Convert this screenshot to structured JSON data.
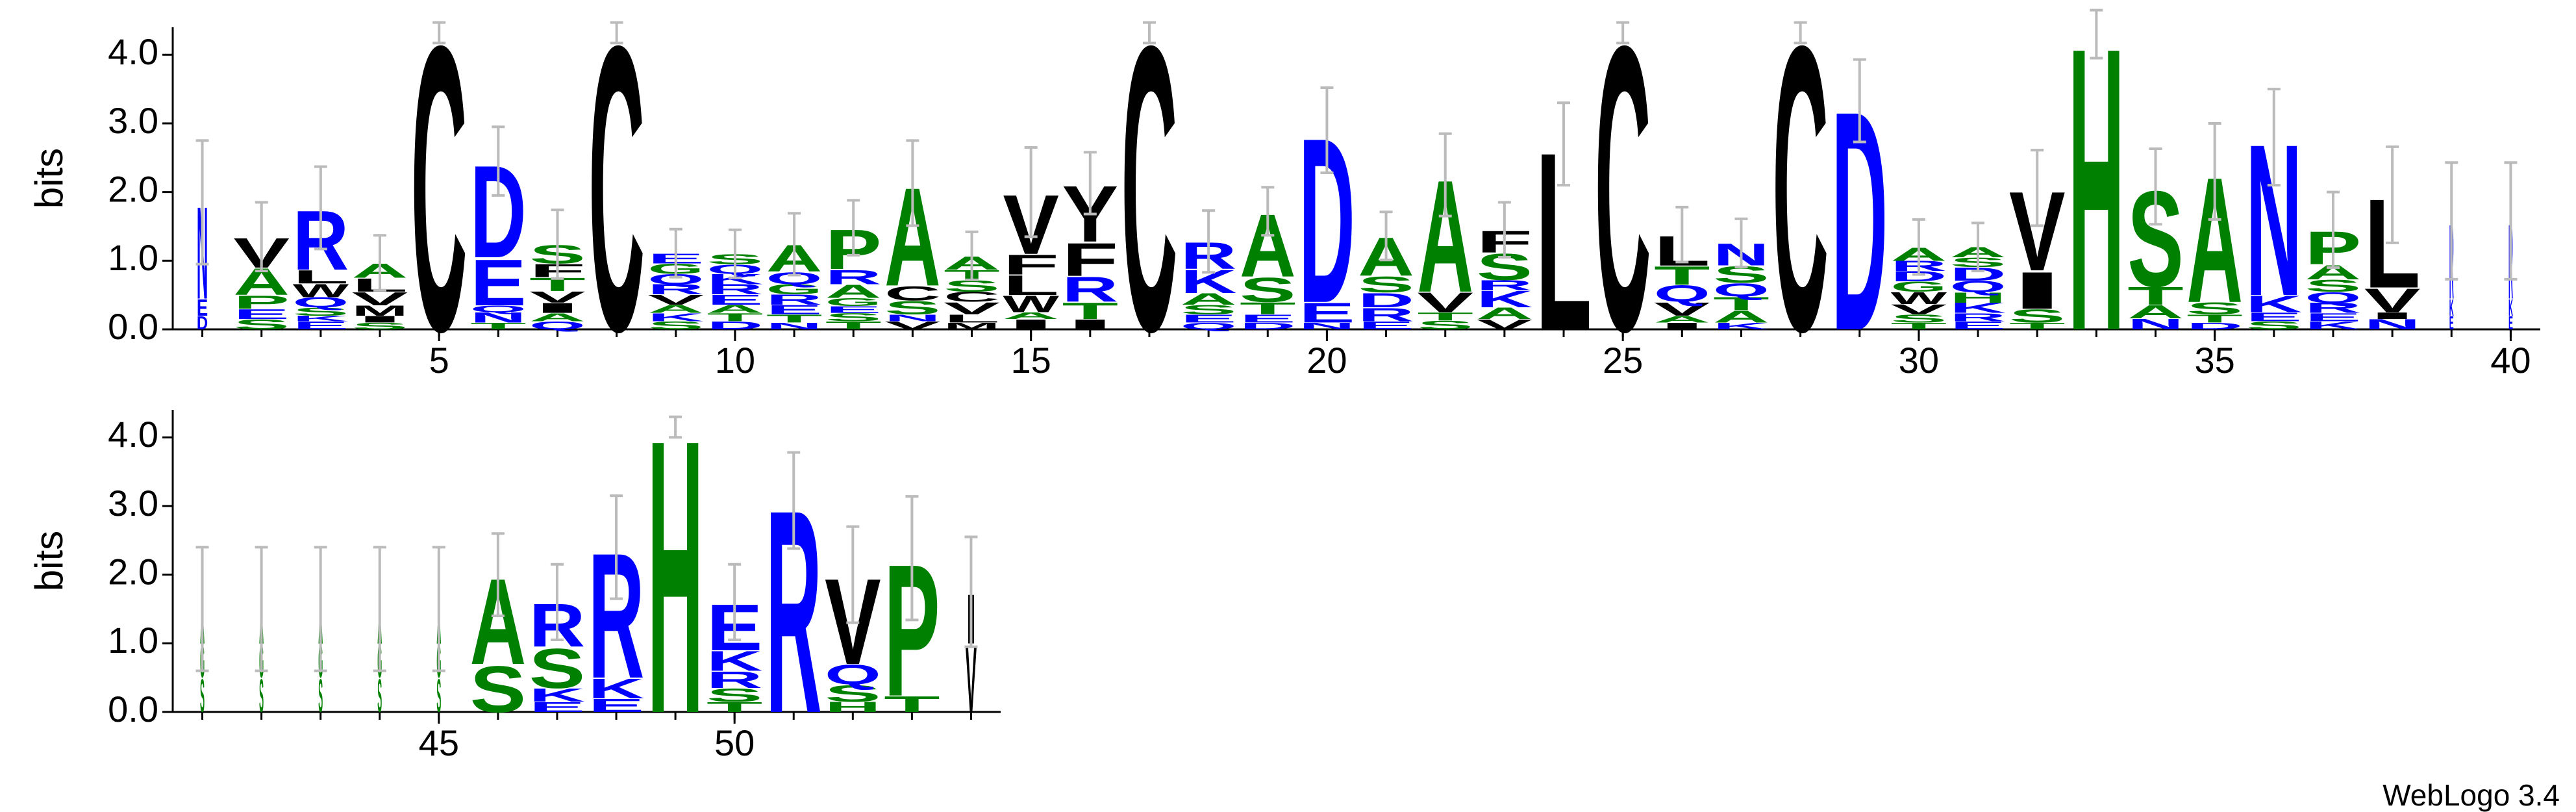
{
  "footer": "WebLogo 3.4",
  "chart_data": [
    {
      "type": "logo",
      "ylabel": "bits",
      "ylim": [
        0,
        4.4
      ],
      "yticks": [
        {
          "value": 0,
          "label": "0.0"
        },
        {
          "value": 1,
          "label": "1.0"
        },
        {
          "value": 2,
          "label": "2.0"
        },
        {
          "value": 3,
          "label": "3.0"
        },
        {
          "value": 4,
          "label": "4.0"
        }
      ],
      "xlim": [
        0.5,
        40.5
      ],
      "xticks": [
        5,
        10,
        15,
        20,
        25,
        30,
        35,
        40
      ],
      "letter_colors": {
        "C": "#000000",
        "V": "#000000",
        "L": "#000000",
        "W": "#000000",
        "F": "#000000",
        "Y": "#000000",
        "I": "#000000",
        "M": "#000000",
        "A": "#008000",
        "S": "#008000",
        "P": "#008000",
        "T": "#008000",
        "G": "#008000",
        "H": "#008000",
        "Q": "#0000ff",
        "N": "#0000ff",
        "D": "#0000ff",
        "E": "#0000ff",
        "R": "#0000ff",
        "K": "#0000ff"
      },
      "x": [
        1,
        2,
        3,
        4,
        5,
        6,
        7,
        8,
        9,
        10,
        11,
        12,
        13,
        14,
        15,
        16,
        17,
        18,
        19,
        20,
        21,
        22,
        23,
        24,
        25,
        26,
        27,
        28,
        29,
        30,
        31,
        32,
        33,
        34,
        35,
        36,
        37,
        38,
        39,
        40
      ],
      "weights": [
        0.2,
        1,
        1,
        1,
        1,
        1,
        1,
        1,
        1,
        1,
        1,
        1,
        1,
        1,
        1,
        1,
        1,
        1,
        1,
        1,
        1,
        1,
        1,
        1,
        1,
        1,
        1,
        1,
        1,
        1,
        1,
        1,
        1,
        1,
        1,
        1,
        1,
        1,
        0.08,
        0.08
      ],
      "errors": [
        0.9,
        0.5,
        0.6,
        0.4,
        0.15,
        0.5,
        0.5,
        0.15,
        0.35,
        0.35,
        0.45,
        0.4,
        0.62,
        0.35,
        0.65,
        0.45,
        0.15,
        0.45,
        0.35,
        0.62,
        0.35,
        0.6,
        0.4,
        0.6,
        0.15,
        0.4,
        0.35,
        0.15,
        0.6,
        0.4,
        0.35,
        0.55,
        0.35,
        0.55,
        0.7,
        0.7,
        0.55,
        0.7,
        0.85,
        0.85
      ],
      "stacks": [
        {
          "letters": [
            "D",
            "E",
            "N"
          ],
          "values": [
            0.2,
            0.25,
            1.4
          ]
        },
        {
          "letters": [
            "S",
            "E",
            "P",
            "A",
            "V"
          ],
          "values": [
            0.15,
            0.15,
            0.2,
            0.4,
            0.45
          ]
        },
        {
          "letters": [
            "E",
            "K",
            "S",
            "Q",
            "W",
            "L",
            "R"
          ],
          "values": [
            0.12,
            0.08,
            0.12,
            0.15,
            0.2,
            0.2,
            0.9
          ]
        },
        {
          "letters": [
            "S",
            "I",
            "M",
            "V",
            "L",
            "A"
          ],
          "values": [
            0.1,
            0.1,
            0.15,
            0.2,
            0.2,
            0.22
          ]
        },
        {
          "letters": [
            "C"
          ],
          "values": [
            4.32
          ]
        },
        {
          "letters": [
            "T",
            "N",
            "Q",
            "E",
            "D"
          ],
          "values": [
            0.1,
            0.15,
            0.1,
            0.7,
            1.4
          ]
        },
        {
          "letters": [
            "Q",
            "A",
            "I",
            "V",
            "T",
            "F",
            "S"
          ],
          "values": [
            0.12,
            0.12,
            0.15,
            0.17,
            0.2,
            0.2,
            0.28
          ]
        },
        {
          "letters": [
            "C"
          ],
          "values": [
            4.32
          ]
        },
        {
          "letters": [
            "S",
            "K",
            "A",
            "V",
            "R",
            "Q",
            "G",
            "E"
          ],
          "values": [
            0.12,
            0.12,
            0.12,
            0.15,
            0.15,
            0.15,
            0.15,
            0.15
          ]
        },
        {
          "letters": [
            "D",
            "T",
            "A",
            "E",
            "R",
            "K",
            "Q",
            "S"
          ],
          "values": [
            0.12,
            0.12,
            0.12,
            0.15,
            0.15,
            0.15,
            0.14,
            0.15
          ]
        },
        {
          "letters": [
            "N",
            "T",
            "E",
            "R",
            "G",
            "Q",
            "A"
          ],
          "values": [
            0.1,
            0.12,
            0.14,
            0.15,
            0.15,
            0.18,
            0.4
          ]
        },
        {
          "letters": [
            "T",
            "S",
            "E",
            "G",
            "A",
            "R",
            "P"
          ],
          "values": [
            0.12,
            0.12,
            0.1,
            0.12,
            0.2,
            0.22,
            0.6
          ]
        },
        {
          "letters": [
            "V",
            "N",
            "S",
            "C",
            "A"
          ],
          "values": [
            0.12,
            0.1,
            0.2,
            0.22,
            1.49
          ]
        },
        {
          "letters": [
            "M",
            "L",
            "V",
            "C",
            "S",
            "T",
            "A"
          ],
          "values": [
            0.1,
            0.12,
            0.18,
            0.15,
            0.17,
            0.15,
            0.2
          ]
        },
        {
          "letters": [
            "I",
            "A",
            "W",
            "L",
            "F",
            "V"
          ],
          "values": [
            0.15,
            0.1,
            0.25,
            0.3,
            0.3,
            0.9
          ]
        },
        {
          "letters": [
            "I",
            "T",
            "R",
            "F",
            "Y"
          ],
          "values": [
            0.15,
            0.25,
            0.38,
            0.5,
            0.85
          ]
        },
        {
          "letters": [
            "C"
          ],
          "values": [
            4.32
          ]
        },
        {
          "letters": [
            "Q",
            "E",
            "S",
            "A",
            "K",
            "R"
          ],
          "values": [
            0.1,
            0.12,
            0.14,
            0.17,
            0.35,
            0.4
          ]
        },
        {
          "letters": [
            "D",
            "E",
            "T",
            "S",
            "A"
          ],
          "values": [
            0.1,
            0.12,
            0.18,
            0.37,
            0.95
          ]
        },
        {
          "letters": [
            "N",
            "E",
            "D"
          ],
          "values": [
            0.1,
            0.3,
            2.5
          ]
        },
        {
          "letters": [
            "E",
            "R",
            "D",
            "S",
            "A"
          ],
          "values": [
            0.12,
            0.2,
            0.22,
            0.24,
            0.58
          ]
        },
        {
          "letters": [
            "S",
            "T",
            "V",
            "A"
          ],
          "values": [
            0.13,
            0.12,
            0.3,
            1.7
          ]
        },
        {
          "letters": [
            "V",
            "A",
            "K",
            "R",
            "S",
            "F"
          ],
          "values": [
            0.15,
            0.17,
            0.25,
            0.15,
            0.4,
            0.33
          ]
        },
        {
          "letters": [
            "L"
          ],
          "values": [
            2.7
          ]
        },
        {
          "letters": [
            "C"
          ],
          "values": [
            4.32
          ]
        },
        {
          "letters": [
            "I",
            "A",
            "V",
            "Q",
            "T",
            "L"
          ],
          "values": [
            0.1,
            0.1,
            0.2,
            0.25,
            0.28,
            0.45
          ]
        },
        {
          "letters": [
            "K",
            "A",
            "T",
            "Q",
            "S",
            "N"
          ],
          "values": [
            0.1,
            0.18,
            0.2,
            0.2,
            0.25,
            0.33
          ]
        },
        {
          "letters": [
            "C"
          ],
          "values": [
            4.32
          ]
        },
        {
          "letters": [
            "D"
          ],
          "values": [
            3.33
          ]
        },
        {
          "letters": [
            "T",
            "S",
            "V",
            "W",
            "G",
            "D",
            "R",
            "A"
          ],
          "values": [
            0.1,
            0.12,
            0.15,
            0.18,
            0.15,
            0.15,
            0.15,
            0.2
          ]
        },
        {
          "letters": [
            "E",
            "R",
            "K",
            "H",
            "Q",
            "D",
            "S",
            "A"
          ],
          "values": [
            0.12,
            0.12,
            0.15,
            0.15,
            0.17,
            0.2,
            0.14,
            0.15
          ]
        },
        {
          "letters": [
            "T",
            "S",
            "I",
            "V"
          ],
          "values": [
            0.1,
            0.2,
            0.56,
            1.2
          ]
        },
        {
          "letters": [
            "H"
          ],
          "values": [
            4.3
          ]
        },
        {
          "letters": [
            "N",
            "A",
            "T",
            "S"
          ],
          "values": [
            0.16,
            0.2,
            0.27,
            1.45
          ]
        },
        {
          "letters": [
            "D",
            "T",
            "S",
            "A"
          ],
          "values": [
            0.1,
            0.12,
            0.18,
            1.9
          ]
        },
        {
          "letters": [
            "S",
            "E",
            "K",
            "N"
          ],
          "values": [
            0.12,
            0.13,
            0.25,
            2.3
          ]
        },
        {
          "letters": [
            "K",
            "E",
            "R",
            "Q",
            "S",
            "A",
            "P"
          ],
          "values": [
            0.12,
            0.12,
            0.15,
            0.16,
            0.18,
            0.22,
            0.5
          ]
        },
        {
          "letters": [
            "N",
            "I",
            "V",
            "L"
          ],
          "values": [
            0.15,
            0.1,
            0.36,
            1.35
          ]
        },
        {
          "letters": [
            "E",
            "K",
            "R"
          ],
          "values": [
            0.2,
            0.25,
            1.13
          ]
        },
        {
          "letters": [
            "E",
            "K",
            "R"
          ],
          "values": [
            0.2,
            0.25,
            1.13
          ]
        }
      ]
    },
    {
      "type": "logo",
      "ylabel": "bits",
      "ylim": [
        0,
        4.4
      ],
      "yticks": [
        {
          "value": 0,
          "label": "0.0"
        },
        {
          "value": 1,
          "label": "1.0"
        },
        {
          "value": 2,
          "label": "2.0"
        },
        {
          "value": 3,
          "label": "3.0"
        },
        {
          "value": 4,
          "label": "4.0"
        }
      ],
      "xlim": [
        40.5,
        54.5
      ],
      "xticks": [
        45,
        50
      ],
      "letter_colors": {
        "V": "#000000",
        "I": "#000000",
        "A": "#008000",
        "S": "#008000",
        "P": "#008000",
        "T": "#008000",
        "G": "#008000",
        "H": "#008000",
        "Q": "#0000ff",
        "E": "#0000ff",
        "R": "#0000ff",
        "K": "#0000ff"
      },
      "x": [
        41,
        42,
        43,
        44,
        45,
        46,
        47,
        48,
        49,
        50,
        51,
        52,
        53,
        54
      ],
      "weights": [
        0.08,
        0.08,
        0.08,
        0.08,
        0.08,
        1,
        1,
        1,
        1,
        1,
        1,
        1,
        1,
        0.2
      ],
      "errors": [
        0.9,
        0.9,
        0.9,
        0.9,
        0.9,
        0.6,
        0.55,
        0.75,
        0.15,
        0.55,
        0.7,
        0.7,
        0.9,
        0.8
      ],
      "stacks": [
        {
          "letters": [
            "S",
            "G",
            "A"
          ],
          "values": [
            0.5,
            0.5,
            0.5
          ]
        },
        {
          "letters": [
            "S",
            "G",
            "A"
          ],
          "values": [
            0.5,
            0.5,
            0.5
          ]
        },
        {
          "letters": [
            "S",
            "G",
            "A"
          ],
          "values": [
            0.5,
            0.5,
            0.5
          ]
        },
        {
          "letters": [
            "S",
            "G",
            "A"
          ],
          "values": [
            0.5,
            0.5,
            0.5
          ]
        },
        {
          "letters": [
            "S",
            "G",
            "A"
          ],
          "values": [
            0.5,
            0.5,
            0.5
          ]
        },
        {
          "letters": [
            "S",
            "A"
          ],
          "values": [
            0.7,
            1.3
          ]
        },
        {
          "letters": [
            "E",
            "K",
            "S",
            "R"
          ],
          "values": [
            0.15,
            0.2,
            0.6,
            0.65
          ]
        },
        {
          "letters": [
            "E",
            "K",
            "R"
          ],
          "values": [
            0.2,
            0.3,
            1.9
          ]
        },
        {
          "letters": [
            "H"
          ],
          "values": [
            4.15
          ]
        },
        {
          "letters": [
            "T",
            "S",
            "R",
            "K",
            "E"
          ],
          "values": [
            0.15,
            0.2,
            0.25,
            0.3,
            0.7
          ]
        },
        {
          "letters": [
            "R"
          ],
          "values": [
            3.08
          ]
        },
        {
          "letters": [
            "H",
            "S",
            "Q",
            "V"
          ],
          "values": [
            0.15,
            0.25,
            0.3,
            1.3
          ]
        },
        {
          "letters": [
            "T",
            "P"
          ],
          "values": [
            0.24,
            2.0
          ]
        },
        {
          "letters": [
            "V",
            "I"
          ],
          "values": [
            1.0,
            0.75
          ]
        }
      ]
    }
  ]
}
